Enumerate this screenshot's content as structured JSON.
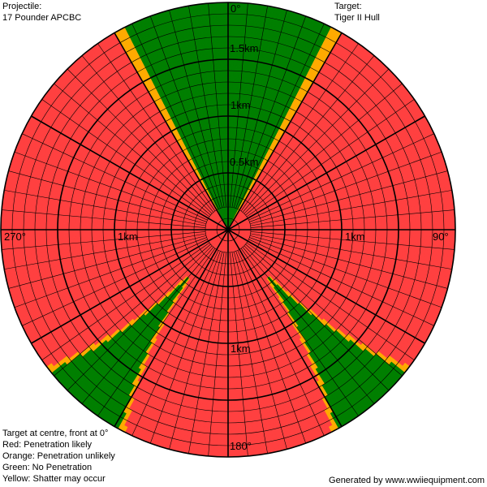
{
  "projectile": {
    "label": "Projectile:",
    "value": "17 Pounder APCBC"
  },
  "target": {
    "label": "Target:",
    "value": "Tiger II Hull"
  },
  "legend": {
    "line1": "Target at centre, front at 0°",
    "line2": "Red: Penetration likely",
    "line3": "Orange: Penetration unlikely",
    "line4": "Green: No Penetration",
    "line5": "Yellow: Shatter may occur"
  },
  "footer": "Generated by www.wwiiequipment.com",
  "diagram": {
    "max_range_km": 2.0,
    "colors": {
      "penetration": "#ff4040",
      "unlikely": "#ffaa00",
      "no_penetration": "#007f00",
      "grid": "#000000"
    },
    "angle_labels": {
      "a0": "0°",
      "a90": "90°",
      "a180": "180°",
      "a270": "270°"
    },
    "range_labels": {
      "r15": "1.5km",
      "r1": "1km",
      "r05": "0.5km",
      "left1": "1km",
      "right1": "1km",
      "bottom1": "1km"
    },
    "zones": {
      "front_green_half_angle_deg": 30,
      "front_transition_deg": 3,
      "rear_green_center_deg": 40,
      "rear_green_start_km": 0.55
    }
  }
}
